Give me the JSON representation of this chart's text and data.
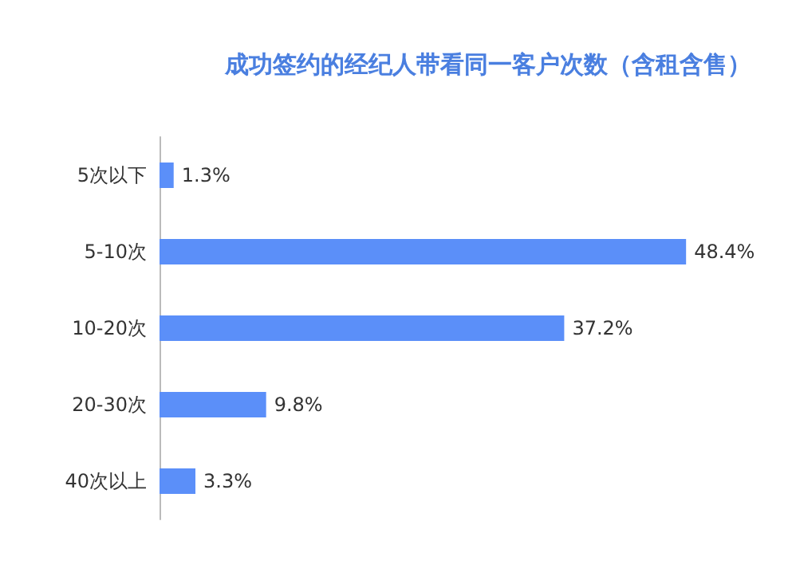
{
  "chart_data": {
    "type": "bar",
    "orientation": "horizontal",
    "title": "成功签约的经纪人带看同一客户次数（含租含售）",
    "categories": [
      "5次以下",
      "5-10次",
      "10-20次",
      "20-30次",
      "40次以上"
    ],
    "values": [
      1.3,
      48.4,
      37.2,
      9.8,
      3.3
    ],
    "value_labels": [
      "1.3%",
      "48.4%",
      "37.2%",
      "9.8%",
      "3.3%"
    ],
    "color": "#5b8ff9"
  }
}
